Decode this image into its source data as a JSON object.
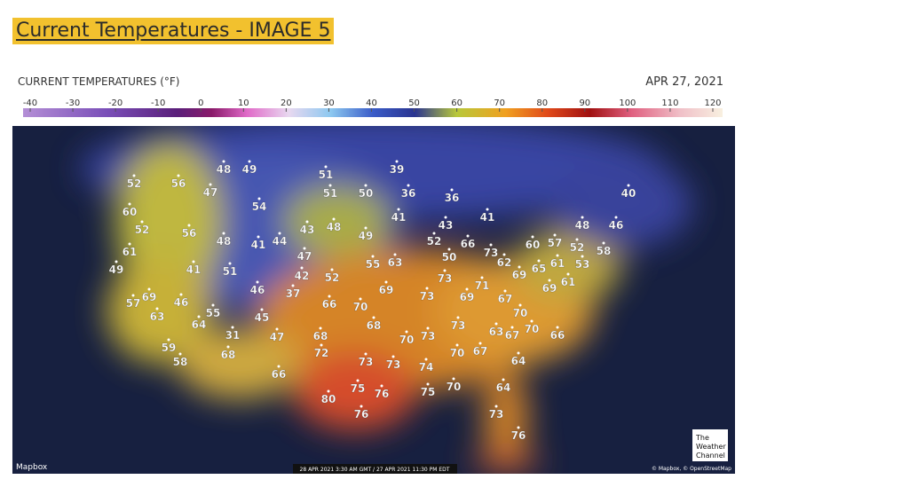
{
  "slide": {
    "title": "Current Temperatures - IMAGE 5"
  },
  "map": {
    "legend_title": "CURRENT TEMPERATURES (°F)",
    "date": "APR 27, 2021",
    "scale_ticks": [
      -40,
      -30,
      -20,
      -10,
      0,
      10,
      20,
      30,
      40,
      50,
      60,
      70,
      80,
      90,
      100,
      110,
      120
    ],
    "readings": [
      48,
      49,
      39,
      52,
      56,
      47,
      51,
      51,
      50,
      36,
      36,
      40,
      54,
      60,
      41,
      43,
      41,
      52,
      56,
      43,
      48,
      49,
      48,
      46,
      48,
      41,
      44,
      52,
      66,
      60,
      57,
      52,
      58,
      61,
      47,
      50,
      73,
      62,
      55,
      63,
      61,
      53,
      49,
      41,
      51,
      42,
      52,
      69,
      65,
      61,
      73,
      71,
      69,
      46,
      37,
      69,
      69,
      57,
      46,
      73,
      69,
      67,
      66,
      70,
      55,
      63,
      64,
      45,
      70,
      68,
      73,
      70,
      31,
      47,
      68,
      70,
      73,
      63,
      67,
      66,
      59,
      58,
      68,
      72,
      70,
      67,
      73,
      73,
      74,
      64,
      66,
      75,
      76,
      75,
      70,
      64,
      80,
      73,
      76,
      76
    ],
    "provider": "Mapbox",
    "timestamp": "28 APR 2021 3:30 AM GMT / 27 APR 2021 11:30 PM EDT",
    "brand": "The Weather Channel",
    "attribution": "© Mapbox, © OpenStreetMap"
  }
}
